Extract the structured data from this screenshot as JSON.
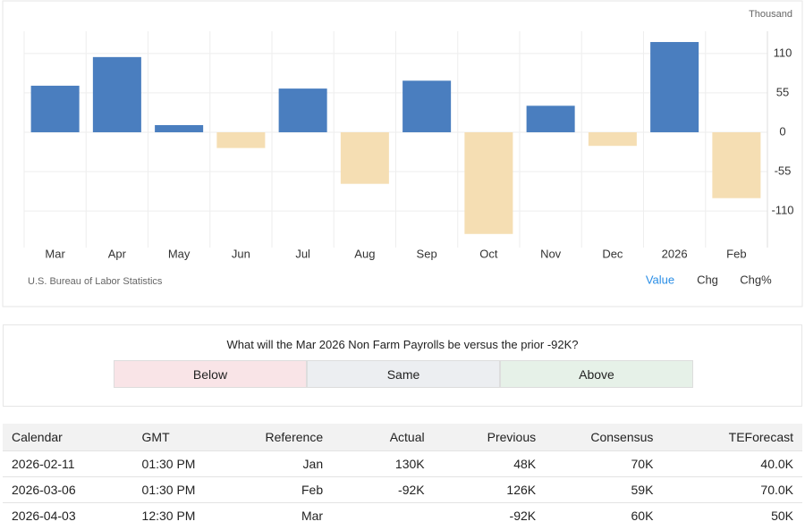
{
  "chart_data": {
    "type": "bar",
    "unit": "Thousand",
    "categories": [
      "Mar",
      "Apr",
      "May",
      "Jun",
      "Jul",
      "Aug",
      "Sep",
      "Oct",
      "Nov",
      "Dec",
      "2026",
      "Feb"
    ],
    "values": [
      65,
      105,
      10,
      -22,
      61,
      -72,
      72,
      -142,
      37,
      -19,
      126,
      -92
    ],
    "color": "#4a7ebf",
    "negative_color": "#f5deb3",
    "ylim": [
      -161,
      141
    ],
    "yticks": [
      110,
      55,
      0,
      -55,
      -110
    ],
    "grid": true
  },
  "source": "U.S. Bureau of Labor Statistics",
  "tabs": [
    "Value",
    "Chg",
    "Chg%"
  ],
  "poll": {
    "question": "What will the Mar 2026 Non Farm Payrolls be versus the prior -92K?",
    "options": [
      "Below",
      "Same",
      "Above"
    ]
  },
  "table": {
    "headers": [
      "Calendar",
      "GMT",
      "Reference",
      "Actual",
      "Previous",
      "Consensus",
      "TEForecast"
    ],
    "rows": [
      [
        "2026-02-11",
        "01:30 PM",
        "Jan",
        "130K",
        "48K",
        "70K",
        "40.0K"
      ],
      [
        "2026-03-06",
        "01:30 PM",
        "Feb",
        "-92K",
        "126K",
        "59K",
        "70.0K"
      ],
      [
        "2026-04-03",
        "12:30 PM",
        "Mar",
        "",
        "-92K",
        "60K",
        "50K"
      ]
    ]
  }
}
